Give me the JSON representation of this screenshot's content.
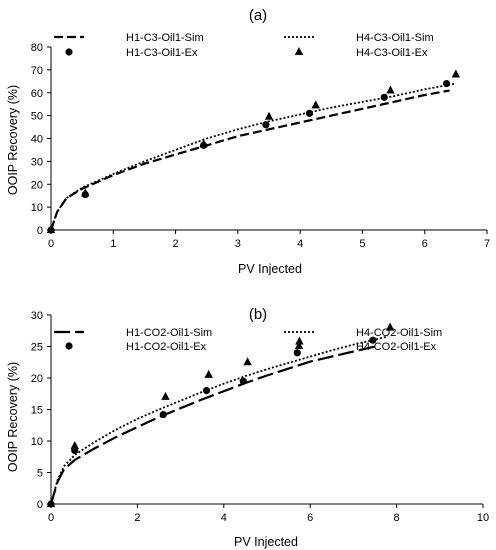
{
  "chart_data": [
    {
      "type": "line",
      "title": "(a)",
      "xlabel": "PV Injected",
      "ylabel": "OOIP Recovery (%)",
      "xlim": [
        0,
        7
      ],
      "ylim": [
        0,
        80
      ],
      "xticks": [
        0,
        1,
        2,
        3,
        4,
        5,
        6,
        7
      ],
      "yticks": [
        0,
        10,
        20,
        30,
        40,
        50,
        60,
        70,
        80
      ],
      "grid": false,
      "legend_position": "top",
      "series": [
        {
          "name": "H1-C3-Oil1-Sim",
          "kind": "line",
          "style": "dashed",
          "x": [
            0,
            0.1,
            0.25,
            0.5,
            1,
            1.5,
            2,
            2.5,
            3,
            3.5,
            4,
            4.5,
            5,
            5.5,
            6,
            6.4
          ],
          "y": [
            0,
            8,
            14,
            18,
            24,
            29,
            33,
            37,
            41,
            44,
            47,
            50,
            53,
            56,
            59,
            61
          ]
        },
        {
          "name": "H4-C3-Oil1-Sim",
          "kind": "line",
          "style": "dotted",
          "x": [
            0,
            0.1,
            0.25,
            0.5,
            1,
            1.5,
            2,
            2.5,
            3,
            3.5,
            4,
            4.5,
            5,
            5.5,
            6,
            6.5
          ],
          "y": [
            0,
            8,
            14,
            18.5,
            24.5,
            30,
            35,
            40,
            44,
            47.5,
            50.5,
            53.5,
            56,
            58.5,
            61.5,
            64
          ]
        },
        {
          "name": "H1-C3-Oil1-Ex",
          "kind": "scatter",
          "marker": "circle",
          "x": [
            0,
            0.55,
            2.45,
            3.45,
            4.15,
            5.35,
            6.35
          ],
          "y": [
            0,
            15.5,
            37,
            46,
            51,
            58,
            64
          ]
        },
        {
          "name": "H4-C3-Oil1-Ex",
          "kind": "scatter",
          "marker": "triangle",
          "x": [
            0,
            0.55,
            2.45,
            3.5,
            4.25,
            5.45,
            6.5
          ],
          "y": [
            0,
            16,
            37.5,
            49.5,
            54.5,
            61,
            68
          ]
        }
      ]
    },
    {
      "type": "line",
      "title": "(b)",
      "xlabel": "PV Injected",
      "ylabel": "OOIP Recovery (%)",
      "xlim": [
        0,
        10
      ],
      "ylim": [
        0,
        30
      ],
      "xticks": [
        0,
        2,
        4,
        6,
        8,
        10
      ],
      "yticks": [
        0,
        5,
        10,
        15,
        20,
        25,
        30
      ],
      "grid": false,
      "legend_position": "top",
      "series": [
        {
          "name": "H1-CO2-Oil1-Sim",
          "kind": "line",
          "style": "long-dashed",
          "x": [
            0,
            0.15,
            0.3,
            0.55,
            1,
            1.5,
            2,
            2.5,
            3,
            3.5,
            4,
            4.5,
            5,
            5.5,
            6,
            6.5,
            7,
            7.5
          ],
          "y": [
            0,
            3.5,
            5.5,
            7,
            8.8,
            10.6,
            12.2,
            13.8,
            15.2,
            16.6,
            17.9,
            19.2,
            20.4,
            21.5,
            22.6,
            23.4,
            24.2,
            25
          ]
        },
        {
          "name": "H4-CO2-Oil1-Sim",
          "kind": "line",
          "style": "dotted",
          "x": [
            0,
            0.15,
            0.3,
            0.55,
            1,
            1.5,
            2,
            2.5,
            3,
            3.5,
            4,
            4.5,
            5,
            5.5,
            6,
            6.5,
            7,
            7.5,
            7.8
          ],
          "y": [
            0,
            3.8,
            6,
            7.8,
            9.8,
            11.8,
            13.5,
            15,
            16.4,
            17.8,
            19.1,
            20.3,
            21.4,
            22.4,
            23.4,
            24.4,
            25.3,
            26.1,
            26.6
          ]
        },
        {
          "name": "H1-CO2-Oil1-Ex",
          "kind": "scatter",
          "marker": "circle",
          "x": [
            0,
            0.55,
            2.6,
            3.6,
            4.45,
            5.7,
            7.45
          ],
          "y": [
            0,
            8.5,
            14.2,
            18,
            19.5,
            24,
            26
          ]
        },
        {
          "name": "H4-CO2-Oil1-Ex",
          "kind": "scatter",
          "marker": "triangle",
          "x": [
            0,
            0.55,
            2.65,
            3.65,
            4.55,
            5.75,
            7.85
          ],
          "y": [
            0,
            9.2,
            17,
            20.5,
            22.5,
            25.8,
            28
          ]
        }
      ]
    }
  ]
}
